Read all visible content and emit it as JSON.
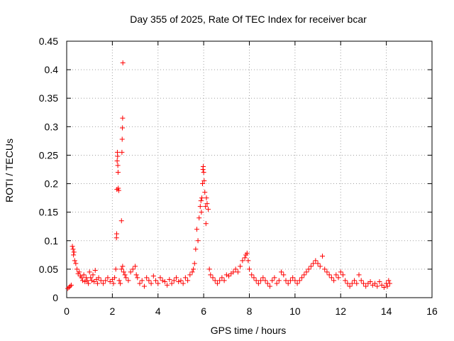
{
  "chart_data": {
    "type": "scatter",
    "title": "Day 355 of 2025, Rate Of TEC Index for receiver bcar",
    "xlabel": "GPS time / hours",
    "ylabel": "ROTI / TECUs",
    "xlim": [
      0,
      16
    ],
    "ylim": [
      0,
      0.45
    ],
    "xticks": [
      0,
      2,
      4,
      6,
      8,
      10,
      12,
      14,
      16
    ],
    "xtick_labels": [
      "0",
      "2",
      "4",
      "6",
      "8",
      "10",
      "12",
      "14",
      "16"
    ],
    "yticks": [
      0,
      0.05,
      0.1,
      0.15,
      0.2,
      0.25,
      0.3,
      0.35,
      0.4,
      0.45
    ],
    "ytick_labels": [
      "0",
      "0.05",
      "0.1",
      "0.15",
      "0.2",
      "0.25",
      "0.3",
      "0.35",
      "0.4",
      "0.45"
    ],
    "grid": true,
    "marker": "+",
    "series_color": "#ff0000",
    "series": [
      {
        "name": "ROTI",
        "points": [
          [
            0.05,
            0.016
          ],
          [
            0.1,
            0.018
          ],
          [
            0.15,
            0.02
          ],
          [
            0.2,
            0.022
          ],
          [
            0.25,
            0.09
          ],
          [
            0.28,
            0.085
          ],
          [
            0.3,
            0.075
          ],
          [
            0.32,
            0.08
          ],
          [
            0.35,
            0.065
          ],
          [
            0.4,
            0.06
          ],
          [
            0.45,
            0.05
          ],
          [
            0.5,
            0.042
          ],
          [
            0.55,
            0.045
          ],
          [
            0.6,
            0.038
          ],
          [
            0.65,
            0.035
          ],
          [
            0.7,
            0.03
          ],
          [
            0.75,
            0.04
          ],
          [
            0.8,
            0.028
          ],
          [
            0.85,
            0.035
          ],
          [
            0.9,
            0.03
          ],
          [
            0.95,
            0.025
          ],
          [
            1.0,
            0.045
          ],
          [
            1.05,
            0.035
          ],
          [
            1.1,
            0.03
          ],
          [
            1.15,
            0.04
          ],
          [
            1.2,
            0.028
          ],
          [
            1.25,
            0.048
          ],
          [
            1.3,
            0.032
          ],
          [
            1.35,
            0.025
          ],
          [
            1.4,
            0.035
          ],
          [
            1.5,
            0.03
          ],
          [
            1.6,
            0.025
          ],
          [
            1.7,
            0.03
          ],
          [
            1.8,
            0.035
          ],
          [
            1.9,
            0.028
          ],
          [
            2.0,
            0.032
          ],
          [
            2.05,
            0.025
          ],
          [
            2.1,
            0.035
          ],
          [
            2.15,
            0.05
          ],
          [
            2.18,
            0.105
          ],
          [
            2.19,
            0.112
          ],
          [
            2.2,
            0.19
          ],
          [
            2.21,
            0.24
          ],
          [
            2.22,
            0.255
          ],
          [
            2.23,
            0.248
          ],
          [
            2.24,
            0.232
          ],
          [
            2.25,
            0.22
          ],
          [
            2.26,
            0.192
          ],
          [
            2.28,
            0.188
          ],
          [
            2.4,
            0.135
          ],
          [
            2.42,
            0.255
          ],
          [
            2.43,
            0.278
          ],
          [
            2.44,
            0.298
          ],
          [
            2.45,
            0.315
          ],
          [
            2.46,
            0.412
          ],
          [
            2.3,
            0.03
          ],
          [
            2.35,
            0.025
          ],
          [
            2.4,
            0.05
          ],
          [
            2.45,
            0.055
          ],
          [
            2.5,
            0.045
          ],
          [
            2.55,
            0.04
          ],
          [
            2.6,
            0.035
          ],
          [
            2.7,
            0.03
          ],
          [
            2.8,
            0.045
          ],
          [
            2.9,
            0.05
          ],
          [
            3.0,
            0.055
          ],
          [
            3.05,
            0.04
          ],
          [
            3.1,
            0.035
          ],
          [
            3.2,
            0.025
          ],
          [
            3.3,
            0.03
          ],
          [
            3.4,
            0.02
          ],
          [
            3.5,
            0.035
          ],
          [
            3.6,
            0.03
          ],
          [
            3.7,
            0.025
          ],
          [
            3.8,
            0.038
          ],
          [
            3.9,
            0.03
          ],
          [
            4.0,
            0.025
          ],
          [
            4.1,
            0.035
          ],
          [
            4.2,
            0.03
          ],
          [
            4.3,
            0.028
          ],
          [
            4.4,
            0.022
          ],
          [
            4.5,
            0.032
          ],
          [
            4.6,
            0.025
          ],
          [
            4.7,
            0.03
          ],
          [
            4.8,
            0.035
          ],
          [
            4.9,
            0.028
          ],
          [
            5.0,
            0.03
          ],
          [
            5.1,
            0.025
          ],
          [
            5.2,
            0.035
          ],
          [
            5.3,
            0.03
          ],
          [
            5.4,
            0.04
          ],
          [
            5.5,
            0.045
          ],
          [
            5.55,
            0.05
          ],
          [
            5.6,
            0.06
          ],
          [
            5.65,
            0.085
          ],
          [
            5.7,
            0.12
          ],
          [
            5.75,
            0.1
          ],
          [
            5.8,
            0.14
          ],
          [
            5.85,
            0.16
          ],
          [
            5.88,
            0.17
          ],
          [
            5.9,
            0.15
          ],
          [
            5.92,
            0.175
          ],
          [
            5.95,
            0.2
          ],
          [
            5.97,
            0.225
          ],
          [
            5.98,
            0.23
          ],
          [
            6.0,
            0.22
          ],
          [
            6.02,
            0.205
          ],
          [
            6.05,
            0.185
          ],
          [
            6.08,
            0.16
          ],
          [
            6.1,
            0.13
          ],
          [
            6.12,
            0.175
          ],
          [
            6.15,
            0.165
          ],
          [
            6.2,
            0.155
          ],
          [
            6.25,
            0.05
          ],
          [
            6.3,
            0.04
          ],
          [
            6.4,
            0.035
          ],
          [
            6.5,
            0.03
          ],
          [
            6.6,
            0.025
          ],
          [
            6.7,
            0.03
          ],
          [
            6.8,
            0.035
          ],
          [
            6.9,
            0.03
          ],
          [
            7.0,
            0.04
          ],
          [
            7.1,
            0.038
          ],
          [
            7.2,
            0.042
          ],
          [
            7.3,
            0.045
          ],
          [
            7.4,
            0.05
          ],
          [
            7.5,
            0.045
          ],
          [
            7.6,
            0.055
          ],
          [
            7.7,
            0.065
          ],
          [
            7.8,
            0.07
          ],
          [
            7.85,
            0.075
          ],
          [
            7.9,
            0.078
          ],
          [
            7.95,
            0.065
          ],
          [
            8.0,
            0.05
          ],
          [
            8.1,
            0.04
          ],
          [
            8.2,
            0.035
          ],
          [
            8.3,
            0.03
          ],
          [
            8.4,
            0.025
          ],
          [
            8.5,
            0.03
          ],
          [
            8.6,
            0.035
          ],
          [
            8.7,
            0.03
          ],
          [
            8.8,
            0.025
          ],
          [
            8.9,
            0.02
          ],
          [
            9.0,
            0.03
          ],
          [
            9.1,
            0.035
          ],
          [
            9.2,
            0.025
          ],
          [
            9.3,
            0.03
          ],
          [
            9.4,
            0.045
          ],
          [
            9.5,
            0.04
          ],
          [
            9.6,
            0.03
          ],
          [
            9.7,
            0.025
          ],
          [
            9.8,
            0.03
          ],
          [
            9.9,
            0.035
          ],
          [
            10.0,
            0.03
          ],
          [
            10.1,
            0.025
          ],
          [
            10.2,
            0.03
          ],
          [
            10.3,
            0.035
          ],
          [
            10.4,
            0.04
          ],
          [
            10.5,
            0.045
          ],
          [
            10.6,
            0.05
          ],
          [
            10.7,
            0.055
          ],
          [
            10.8,
            0.06
          ],
          [
            10.9,
            0.065
          ],
          [
            11.0,
            0.06
          ],
          [
            11.1,
            0.055
          ],
          [
            11.2,
            0.073
          ],
          [
            11.3,
            0.05
          ],
          [
            11.4,
            0.045
          ],
          [
            11.5,
            0.04
          ],
          [
            11.6,
            0.035
          ],
          [
            11.7,
            0.03
          ],
          [
            11.8,
            0.04
          ],
          [
            11.9,
            0.035
          ],
          [
            12.0,
            0.045
          ],
          [
            12.1,
            0.04
          ],
          [
            12.2,
            0.03
          ],
          [
            12.3,
            0.025
          ],
          [
            12.4,
            0.02
          ],
          [
            12.5,
            0.025
          ],
          [
            12.6,
            0.03
          ],
          [
            12.7,
            0.025
          ],
          [
            12.8,
            0.04
          ],
          [
            12.9,
            0.03
          ],
          [
            13.0,
            0.025
          ],
          [
            13.1,
            0.02
          ],
          [
            13.2,
            0.025
          ],
          [
            13.3,
            0.028
          ],
          [
            13.4,
            0.022
          ],
          [
            13.5,
            0.025
          ],
          [
            13.6,
            0.02
          ],
          [
            13.7,
            0.028
          ],
          [
            13.8,
            0.022
          ],
          [
            13.9,
            0.018
          ],
          [
            14.0,
            0.025
          ],
          [
            14.05,
            0.02
          ],
          [
            14.1,
            0.03
          ],
          [
            14.15,
            0.025
          ]
        ]
      }
    ]
  }
}
